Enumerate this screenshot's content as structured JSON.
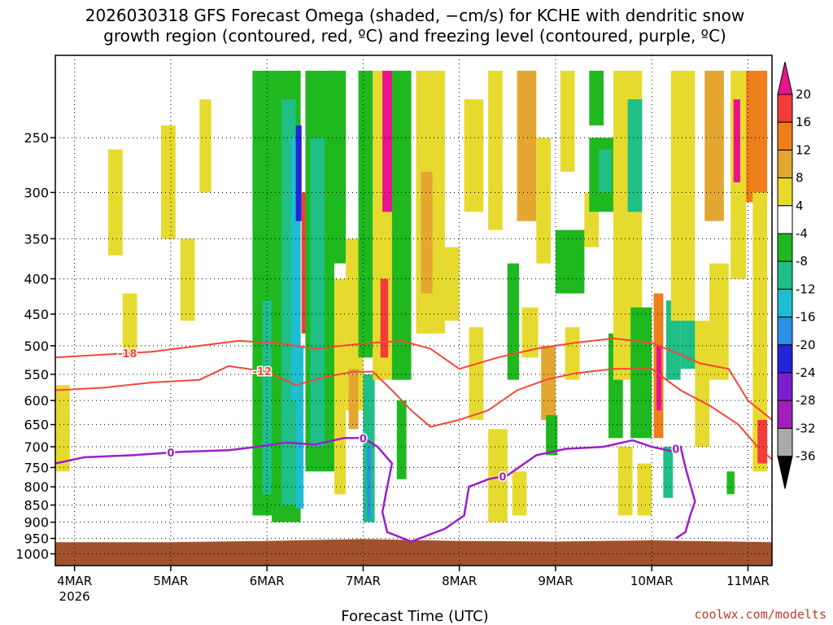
{
  "chart_data": {
    "type": "heatmap",
    "title_line1": "2026030318 GFS Forecast Omega (shaded, −cm/s) for KCHE with dendritic snow",
    "title_line2": "growth region (contoured, red, ºC) and freezing level (contoured, purple, ºC)",
    "xlabel": "Forecast Time (UTC)",
    "credit": "coolwx.com/modelts",
    "x_range_days": [
      -0.2,
      7.25
    ],
    "x_ticks": [
      {
        "day": 0,
        "label": "4MAR",
        "sublabel": "2026"
      },
      {
        "day": 1,
        "label": "5MAR",
        "sublabel": ""
      },
      {
        "day": 2,
        "label": "6MAR",
        "sublabel": ""
      },
      {
        "day": 3,
        "label": "7MAR",
        "sublabel": ""
      },
      {
        "day": 4,
        "label": "8MAR",
        "sublabel": ""
      },
      {
        "day": 5,
        "label": "9MAR",
        "sublabel": ""
      },
      {
        "day": 6,
        "label": "10MAR",
        "sublabel": ""
      },
      {
        "day": 7,
        "label": "11MAR",
        "sublabel": ""
      }
    ],
    "y_range_hpa": [
      1040,
      190
    ],
    "y_ticks": [
      {
        "p": 250,
        "label": "250"
      },
      {
        "p": 300,
        "label": "300"
      },
      {
        "p": 350,
        "label": "350"
      },
      {
        "p": 400,
        "label": "400"
      },
      {
        "p": 450,
        "label": "450"
      },
      {
        "p": 500,
        "label": "500"
      },
      {
        "p": 550,
        "label": "550"
      },
      {
        "p": 600,
        "label": "600"
      },
      {
        "p": 650,
        "label": "650"
      },
      {
        "p": 700,
        "label": "700"
      },
      {
        "p": 750,
        "label": "750"
      },
      {
        "p": 800,
        "label": "800"
      },
      {
        "p": 850,
        "label": "850"
      },
      {
        "p": 900,
        "label": "900"
      },
      {
        "p": 950,
        "label": "950"
      },
      {
        "p": 1000,
        "label": "1000"
      }
    ],
    "colorbar": {
      "top_color": "#e8148c",
      "bottom_color": "#000000",
      "bins": [
        {
          "color": "#f23c3c",
          "lo": 16,
          "hi": 20
        },
        {
          "color": "#ef7f1a",
          "lo": 12,
          "hi": 16
        },
        {
          "color": "#e3a731",
          "lo": 8,
          "hi": 12
        },
        {
          "color": "#e7da2e",
          "lo": 4,
          "hi": 8
        },
        {
          "color": "#ffffff",
          "lo": -4,
          "hi": 4
        },
        {
          "color": "#1fb81f",
          "lo": -8,
          "hi": -4
        },
        {
          "color": "#1fbf86",
          "lo": -12,
          "hi": -8
        },
        {
          "color": "#1fbdd0",
          "lo": -16,
          "hi": -12
        },
        {
          "color": "#2b90e8",
          "lo": -20,
          "hi": -16
        },
        {
          "color": "#2424d8",
          "lo": -24,
          "hi": -20
        },
        {
          "color": "#7a1fd0",
          "lo": -28,
          "hi": -24
        },
        {
          "color": "#a01fb8",
          "lo": -32,
          "hi": -28
        },
        {
          "color": "#a9a9a9",
          "lo": -36,
          "hi": -32
        }
      ],
      "labels": [
        "20",
        "16",
        "12",
        "8",
        "4",
        "-4",
        "-8",
        "-12",
        "-16",
        "-20",
        "-24",
        "-28",
        "-32",
        "-36"
      ]
    },
    "omega_cells": [
      {
        "t0": 1.85,
        "t1": 2.05,
        "p0": 200,
        "p1": 880,
        "color": "#1fb81f"
      },
      {
        "t0": 1.95,
        "t1": 2.15,
        "p0": 430,
        "p1": 820,
        "color": "#1fbf86"
      },
      {
        "t0": 2.05,
        "t1": 2.35,
        "p0": 200,
        "p1": 900,
        "color": "#1fb81f"
      },
      {
        "t0": 2.15,
        "t1": 2.3,
        "p0": 220,
        "p1": 850,
        "color": "#1fbf86"
      },
      {
        "t0": 2.25,
        "t1": 2.35,
        "p0": 250,
        "p1": 600,
        "color": "#1fbdd0"
      },
      {
        "t0": 2.3,
        "t1": 2.36,
        "p0": 240,
        "p1": 330,
        "color": "#2424d8"
      },
      {
        "t0": 2.3,
        "t1": 2.38,
        "p0": 500,
        "p1": 860,
        "color": "#1fbdd0"
      },
      {
        "t0": 2.36,
        "t1": 2.44,
        "p0": 300,
        "p1": 480,
        "color": "#f23c3c"
      },
      {
        "t0": 2.4,
        "t1": 2.7,
        "p0": 200,
        "p1": 760,
        "color": "#1fb81f"
      },
      {
        "t0": 2.45,
        "t1": 2.6,
        "p0": 250,
        "p1": 700,
        "color": "#1fbf86"
      },
      {
        "t0": 2.62,
        "t1": 2.82,
        "p0": 200,
        "p1": 380,
        "color": "#1fb81f"
      },
      {
        "t0": 2.7,
        "t1": 2.82,
        "p0": 400,
        "p1": 820,
        "color": "#e7da2e"
      },
      {
        "t0": 2.82,
        "t1": 3.0,
        "p0": 350,
        "p1": 620,
        "color": "#e7da2e"
      },
      {
        "t0": 2.85,
        "t1": 2.95,
        "p0": 540,
        "p1": 660,
        "color": "#e3a731"
      },
      {
        "t0": 2.95,
        "t1": 3.1,
        "p0": 200,
        "p1": 520,
        "color": "#1fb81f"
      },
      {
        "t0": 3.0,
        "t1": 3.12,
        "p0": 550,
        "p1": 900,
        "color": "#1fbf86"
      },
      {
        "t0": 3.04,
        "t1": 3.08,
        "p0": 700,
        "p1": 890,
        "color": "#2b90e8"
      },
      {
        "t0": 3.1,
        "t1": 3.35,
        "p0": 200,
        "p1": 560,
        "color": "#e7da2e"
      },
      {
        "t0": 3.18,
        "t1": 3.26,
        "p0": 400,
        "p1": 520,
        "color": "#f23c3c"
      },
      {
        "t0": 3.2,
        "t1": 3.32,
        "p0": 200,
        "p1": 320,
        "color": "#e8148c"
      },
      {
        "t0": 3.3,
        "t1": 3.5,
        "p0": 200,
        "p1": 560,
        "color": "#1fb81f"
      },
      {
        "t0": 3.35,
        "t1": 3.45,
        "p0": 600,
        "p1": 780,
        "color": "#1fb81f"
      },
      {
        "t0": 3.55,
        "t1": 3.85,
        "p0": 200,
        "p1": 480,
        "color": "#e7da2e"
      },
      {
        "t0": 3.6,
        "t1": 3.72,
        "p0": 280,
        "p1": 420,
        "color": "#e3a731"
      },
      {
        "t0": 3.85,
        "t1": 4.0,
        "p0": 360,
        "p1": 460,
        "color": "#e7da2e"
      },
      {
        "t0": 4.05,
        "t1": 4.25,
        "p0": 220,
        "p1": 320,
        "color": "#e7da2e"
      },
      {
        "t0": 4.1,
        "t1": 4.25,
        "p0": 470,
        "p1": 640,
        "color": "#e7da2e"
      },
      {
        "t0": 4.3,
        "t1": 4.45,
        "p0": 200,
        "p1": 340,
        "color": "#e7da2e"
      },
      {
        "t0": 4.3,
        "t1": 4.5,
        "p0": 660,
        "p1": 900,
        "color": "#e7da2e"
      },
      {
        "t0": 4.5,
        "t1": 4.62,
        "p0": 380,
        "p1": 560,
        "color": "#1fb81f"
      },
      {
        "t0": 4.55,
        "t1": 4.7,
        "p0": 760,
        "p1": 880,
        "color": "#e7da2e"
      },
      {
        "t0": 4.6,
        "t1": 4.8,
        "p0": 200,
        "p1": 330,
        "color": "#e3a731"
      },
      {
        "t0": 4.65,
        "t1": 4.82,
        "p0": 440,
        "p1": 520,
        "color": "#e7da2e"
      },
      {
        "t0": 4.8,
        "t1": 4.95,
        "p0": 250,
        "p1": 380,
        "color": "#e7da2e"
      },
      {
        "t0": 4.85,
        "t1": 5.0,
        "p0": 500,
        "p1": 640,
        "color": "#e3a731"
      },
      {
        "t0": 4.9,
        "t1": 5.02,
        "p0": 630,
        "p1": 720,
        "color": "#1fb81f"
      },
      {
        "t0": 5.0,
        "t1": 5.3,
        "p0": 340,
        "p1": 420,
        "color": "#1fb81f"
      },
      {
        "t0": 5.05,
        "t1": 5.2,
        "p0": 200,
        "p1": 280,
        "color": "#e7da2e"
      },
      {
        "t0": 5.1,
        "t1": 5.25,
        "p0": 470,
        "p1": 560,
        "color": "#e7da2e"
      },
      {
        "t0": 5.3,
        "t1": 5.45,
        "p0": 300,
        "p1": 360,
        "color": "#e7da2e"
      },
      {
        "t0": 5.35,
        "t1": 5.5,
        "p0": 200,
        "p1": 240,
        "color": "#1fb81f"
      },
      {
        "t0": 5.35,
        "t1": 5.65,
        "p0": 250,
        "p1": 320,
        "color": "#1fb81f"
      },
      {
        "t0": 5.45,
        "t1": 5.58,
        "p0": 260,
        "p1": 300,
        "color": "#1fbf86"
      },
      {
        "t0": 5.55,
        "t1": 5.7,
        "p0": 480,
        "p1": 680,
        "color": "#1fb81f"
      },
      {
        "t0": 5.6,
        "t1": 5.9,
        "p0": 200,
        "p1": 560,
        "color": "#e7da2e"
      },
      {
        "t0": 5.65,
        "t1": 5.8,
        "p0": 700,
        "p1": 880,
        "color": "#e7da2e"
      },
      {
        "t0": 5.75,
        "t1": 5.9,
        "p0": 220,
        "p1": 320,
        "color": "#1fbf86"
      },
      {
        "t0": 5.78,
        "t1": 6.0,
        "p0": 440,
        "p1": 680,
        "color": "#1fb81f"
      },
      {
        "t0": 5.85,
        "t1": 6.0,
        "p0": 740,
        "p1": 880,
        "color": "#e7da2e"
      },
      {
        "t0": 6.02,
        "t1": 6.12,
        "p0": 420,
        "p1": 680,
        "color": "#ef7f1a"
      },
      {
        "t0": 6.05,
        "t1": 6.1,
        "p0": 500,
        "p1": 620,
        "color": "#e8148c"
      },
      {
        "t0": 6.12,
        "t1": 6.22,
        "p0": 700,
        "p1": 830,
        "color": "#1fbf86"
      },
      {
        "t0": 6.15,
        "t1": 6.3,
        "p0": 430,
        "p1": 560,
        "color": "#1fbf86"
      },
      {
        "t0": 6.2,
        "t1": 6.45,
        "p0": 200,
        "p1": 460,
        "color": "#e7da2e"
      },
      {
        "t0": 6.3,
        "t1": 6.45,
        "p0": 460,
        "p1": 540,
        "color": "#1fbf86"
      },
      {
        "t0": 6.45,
        "t1": 6.6,
        "p0": 460,
        "p1": 700,
        "color": "#e7da2e"
      },
      {
        "t0": 6.55,
        "t1": 6.75,
        "p0": 200,
        "p1": 330,
        "color": "#e3a731"
      },
      {
        "t0": 6.6,
        "t1": 6.8,
        "p0": 380,
        "p1": 560,
        "color": "#e7da2e"
      },
      {
        "t0": 6.78,
        "t1": 6.86,
        "p0": 760,
        "p1": 820,
        "color": "#1fb81f"
      },
      {
        "t0": 6.82,
        "t1": 6.98,
        "p0": 200,
        "p1": 400,
        "color": "#e7da2e"
      },
      {
        "t0": 6.85,
        "t1": 6.92,
        "p0": 220,
        "p1": 290,
        "color": "#e8148c"
      },
      {
        "t0": 6.98,
        "t1": 7.2,
        "p0": 200,
        "p1": 310,
        "color": "#ef7f1a"
      },
      {
        "t0": 7.05,
        "t1": 7.2,
        "p0": 300,
        "p1": 760,
        "color": "#e7da2e"
      },
      {
        "t0": 7.1,
        "t1": 7.2,
        "p0": 640,
        "p1": 740,
        "color": "#f23c3c"
      },
      {
        "t0": -0.2,
        "t1": -0.05,
        "p0": 570,
        "p1": 760,
        "color": "#e7da2e"
      },
      {
        "t0": 0.35,
        "t1": 0.5,
        "p0": 260,
        "p1": 370,
        "color": "#e7da2e"
      },
      {
        "t0": 0.5,
        "t1": 0.65,
        "p0": 420,
        "p1": 520,
        "color": "#e7da2e"
      },
      {
        "t0": 0.9,
        "t1": 1.05,
        "p0": 240,
        "p1": 350,
        "color": "#e7da2e"
      },
      {
        "t0": 1.1,
        "t1": 1.25,
        "p0": 350,
        "p1": 460,
        "color": "#e7da2e"
      },
      {
        "t0": 1.3,
        "t1": 1.42,
        "p0": 220,
        "p1": 300,
        "color": "#e7da2e"
      }
    ],
    "dgz_contours": [
      {
        "label": "-18",
        "label_day": 0.55,
        "points": [
          [
            -0.2,
            520
          ],
          [
            0.3,
            515
          ],
          [
            0.8,
            510
          ],
          [
            1.3,
            500
          ],
          [
            1.7,
            492
          ],
          [
            2.1,
            495
          ],
          [
            2.5,
            505
          ],
          [
            2.9,
            498
          ],
          [
            3.1,
            495
          ],
          [
            3.4,
            492
          ],
          [
            3.7,
            505
          ],
          [
            4.0,
            540
          ],
          [
            4.4,
            520
          ],
          [
            4.8,
            505
          ],
          [
            5.2,
            495
          ],
          [
            5.6,
            488
          ],
          [
            6.0,
            495
          ],
          [
            6.3,
            515
          ],
          [
            6.5,
            530
          ],
          [
            6.8,
            540
          ],
          [
            7.0,
            600
          ],
          [
            7.25,
            640
          ]
        ]
      },
      {
        "label": "-12",
        "label_day": 1.95,
        "points": [
          [
            -0.2,
            580
          ],
          [
            0.3,
            575
          ],
          [
            0.8,
            565
          ],
          [
            1.3,
            560
          ],
          [
            1.6,
            535
          ],
          [
            2.0,
            545
          ],
          [
            2.3,
            570
          ],
          [
            2.6,
            555
          ],
          [
            2.9,
            545
          ],
          [
            3.1,
            545
          ],
          [
            3.3,
            580
          ],
          [
            3.5,
            620
          ],
          [
            3.7,
            655
          ],
          [
            4.0,
            640
          ],
          [
            4.3,
            620
          ],
          [
            4.6,
            580
          ],
          [
            4.9,
            560
          ],
          [
            5.2,
            548
          ],
          [
            5.6,
            540
          ],
          [
            6.0,
            540
          ],
          [
            6.3,
            580
          ],
          [
            6.6,
            610
          ],
          [
            6.9,
            650
          ],
          [
            7.1,
            700
          ],
          [
            7.25,
            730
          ]
        ]
      }
    ],
    "freezing_contour": {
      "label": "0",
      "label_days": [
        1.0,
        3.0,
        4.45,
        6.25
      ],
      "points": [
        [
          -0.2,
          740
        ],
        [
          0.1,
          725
        ],
        [
          0.6,
          720
        ],
        [
          1.1,
          712
        ],
        [
          1.6,
          708
        ],
        [
          1.9,
          700
        ],
        [
          2.2,
          690
        ],
        [
          2.5,
          695
        ],
        [
          2.8,
          680
        ],
        [
          3.0,
          680
        ],
        [
          3.15,
          700
        ],
        [
          3.3,
          740
        ],
        [
          3.25,
          800
        ],
        [
          3.2,
          870
        ],
        [
          3.25,
          930
        ],
        [
          3.5,
          960
        ],
        [
          3.85,
          920
        ],
        [
          4.05,
          880
        ],
        [
          4.1,
          800
        ],
        [
          4.3,
          780
        ],
        [
          4.5,
          770
        ],
        [
          4.8,
          720
        ],
        [
          5.1,
          705
        ],
        [
          5.5,
          700
        ],
        [
          5.8,
          685
        ],
        [
          6.0,
          700
        ],
        [
          6.2,
          710
        ],
        [
          6.3,
          700
        ],
        [
          6.35,
          750
        ],
        [
          6.45,
          840
        ],
        [
          6.4,
          880
        ],
        [
          6.35,
          930
        ],
        [
          6.25,
          950
        ]
      ]
    }
  }
}
